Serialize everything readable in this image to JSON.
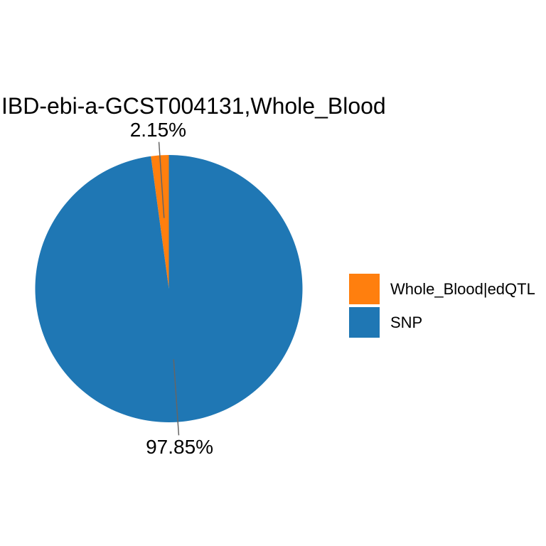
{
  "colors": {
    "background": "#ffffff",
    "text": "#000000",
    "leader_line": "#666666",
    "orange": "#FF7F0E",
    "blue": "#1F77B4"
  },
  "chart_data": {
    "type": "pie",
    "title": "IBD-ebi-a-GCST004131,Whole_Blood",
    "start_angle_deg": 0,
    "direction": "counterclockwise-from-top",
    "legend_position": "right",
    "grid": false,
    "slices": [
      {
        "label": "Whole_Blood|edQTL",
        "value": 2.15,
        "pct_label": "2.15%",
        "color": "#FF7F0E"
      },
      {
        "label": "SNP",
        "value": 97.85,
        "pct_label": "97.85%",
        "color": "#1F77B4"
      }
    ]
  }
}
